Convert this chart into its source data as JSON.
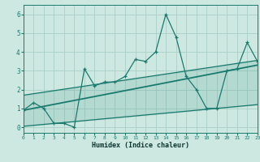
{
  "xlabel": "Humidex (Indice chaleur)",
  "background_color": "#cce8e0",
  "grid_color": "#aacfc8",
  "line_color": "#1a7a6e",
  "x_data": [
    0,
    1,
    2,
    3,
    4,
    5,
    6,
    7,
    8,
    9,
    10,
    11,
    12,
    13,
    14,
    15,
    16,
    17,
    18,
    19,
    20,
    21,
    22,
    23
  ],
  "y_main": [
    0.9,
    1.3,
    1.0,
    0.2,
    0.2,
    0.0,
    3.1,
    2.2,
    2.4,
    2.4,
    2.7,
    3.6,
    3.5,
    4.0,
    6.0,
    4.8,
    2.7,
    2.0,
    1.0,
    1.0,
    3.0,
    3.1,
    4.5,
    3.5
  ],
  "xlim": [
    0,
    23
  ],
  "ylim": [
    -0.3,
    6.5
  ],
  "yticks": [
    0,
    1,
    2,
    3,
    4,
    5,
    6
  ],
  "xticks": [
    0,
    1,
    2,
    3,
    4,
    5,
    6,
    7,
    8,
    9,
    10,
    11,
    12,
    13,
    14,
    15,
    16,
    17,
    18,
    19,
    20,
    21,
    22,
    23
  ],
  "reg_x0": 0,
  "reg_y0": 0.9,
  "reg_x1": 23,
  "reg_y1": 3.3,
  "upper_x0": 0,
  "upper_y0": 1.7,
  "upper_x1": 23,
  "upper_y1": 3.55,
  "lower_x0": 0,
  "lower_y0": 0.05,
  "lower_x1": 23,
  "lower_y1": 1.2
}
